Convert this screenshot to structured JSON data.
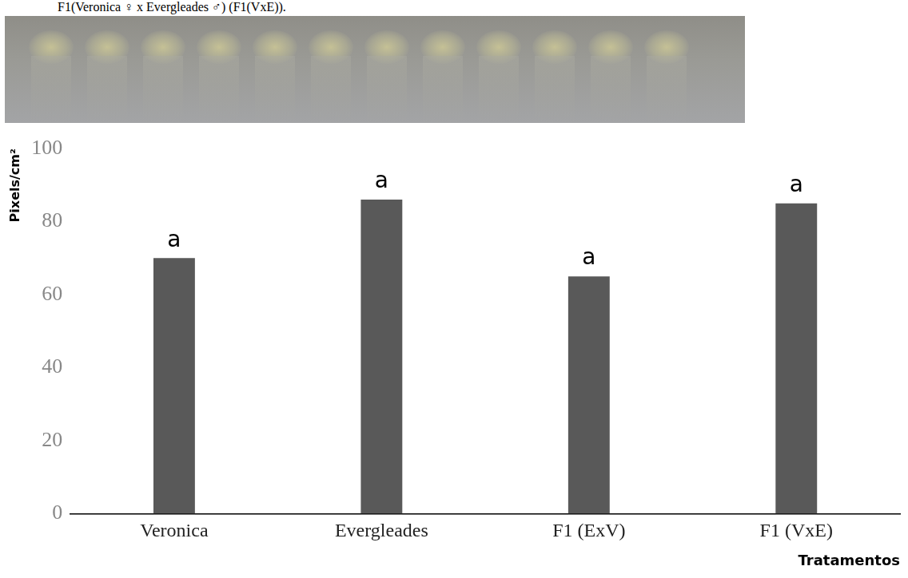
{
  "caption": "F1(Veronica ♀ x Evergleades ♂) (F1(VxE)).",
  "chart_data": {
    "type": "bar",
    "y_label": "Pixels/cm²",
    "x_label": "Tratamentos",
    "categories": [
      "Veronica",
      "Evergleades",
      "F1 (ExV)",
      "F1 (VxE)"
    ],
    "values": [
      70,
      86,
      65,
      85
    ],
    "annotations": [
      "a",
      "a",
      "a",
      "a"
    ],
    "color": "#595959",
    "ylim": [
      0,
      100
    ],
    "yticks": [
      0,
      20,
      40,
      60,
      80,
      100
    ],
    "grid": false
  }
}
